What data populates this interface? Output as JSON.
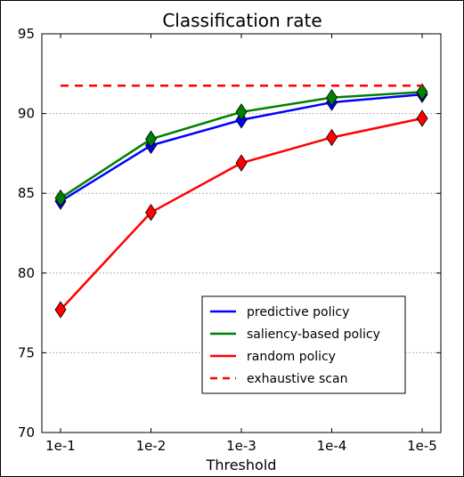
{
  "chart_data": {
    "type": "line",
    "title": "Classification rate",
    "xlabel": "Threshold",
    "ylabel": "",
    "categories": [
      "1e-1",
      "1e-2",
      "1e-3",
      "1e-4",
      "1e-5"
    ],
    "ylim": [
      70,
      95
    ],
    "yticks": [
      70,
      75,
      80,
      85,
      90,
      95
    ],
    "grid": "horizontal dotted",
    "legend_position": "lower-right",
    "series": [
      {
        "name": "predictive policy",
        "color": "#0000ff",
        "style": "solid",
        "marker": "diamond",
        "values": [
          84.5,
          88.0,
          89.6,
          90.7,
          91.2
        ]
      },
      {
        "name": "saliency-based policy",
        "color": "#008000",
        "style": "solid",
        "marker": "diamond",
        "values": [
          84.7,
          88.4,
          90.1,
          91.0,
          91.35
        ]
      },
      {
        "name": "random policy",
        "color": "#ff0000",
        "style": "solid",
        "marker": "diamond",
        "values": [
          77.7,
          83.8,
          86.9,
          88.5,
          89.7
        ]
      },
      {
        "name": "exhaustive scan",
        "color": "#ff0000",
        "style": "dashed",
        "marker": "none",
        "value": 91.75
      }
    ]
  }
}
